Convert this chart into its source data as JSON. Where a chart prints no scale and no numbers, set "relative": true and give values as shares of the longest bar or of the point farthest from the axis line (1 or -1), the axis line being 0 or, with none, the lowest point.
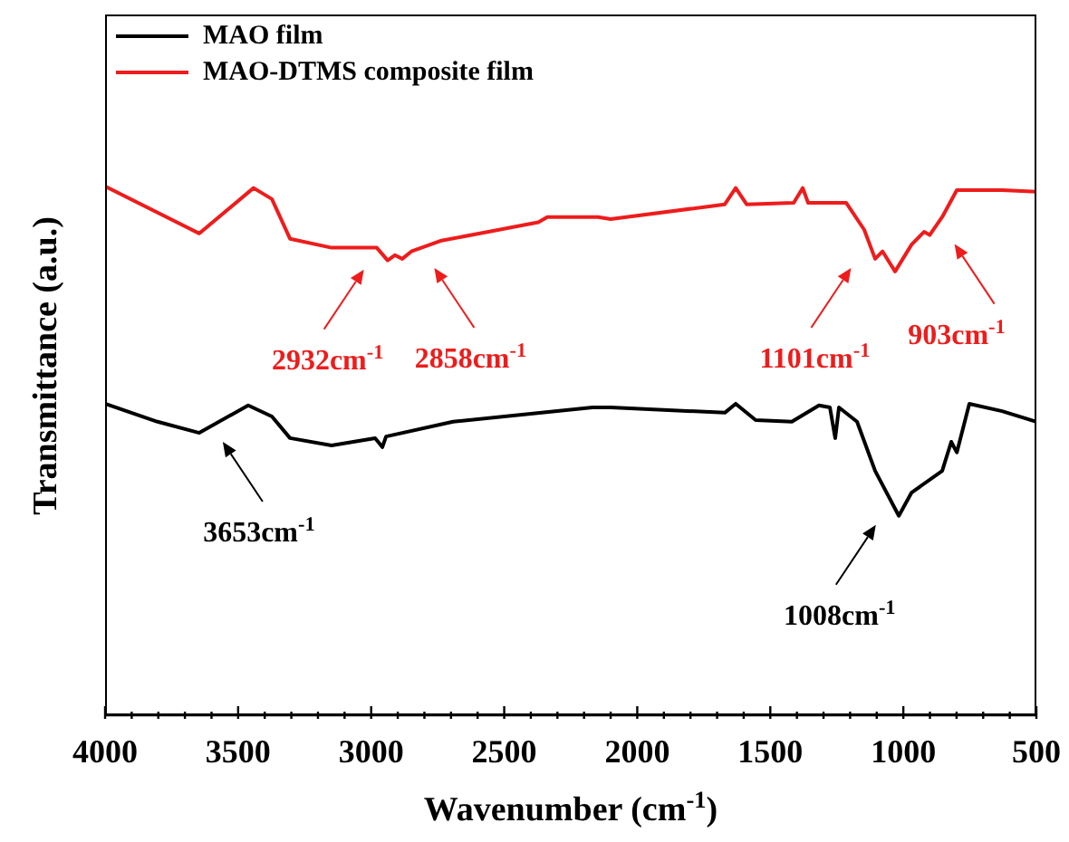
{
  "chart_data": {
    "type": "line",
    "relative": true,
    "xlabel": "Wavenumber (cm$^{-1}$)",
    "ylabel": "Transmittance (a.u.)",
    "xlim": [
      4000,
      500
    ],
    "xticks": [
      4000,
      {
        "value": 3900,
        "label": null
      },
      {
        "value": 3800,
        "label": null
      },
      {
        "value": 3700,
        "label": null
      },
      {
        "value": 3600,
        "label": null
      },
      3500,
      {
        "value": 3400,
        "label": null
      },
      {
        "value": 3300,
        "label": null
      },
      {
        "value": 3200,
        "label": null
      },
      {
        "value": 3100,
        "label": null
      },
      3000,
      {
        "value": 2900,
        "label": null
      },
      {
        "value": 2800,
        "label": null
      },
      {
        "value": 2700,
        "label": null
      },
      {
        "value": 2600,
        "label": null
      },
      2500,
      {
        "value": 2400,
        "label": null
      },
      {
        "value": 2300,
        "label": null
      },
      {
        "value": 2200,
        "label": null
      },
      {
        "value": 2100,
        "label": null
      },
      2000,
      {
        "value": 1900,
        "label": null
      },
      {
        "value": 1800,
        "label": null
      },
      {
        "value": 1700,
        "label": null
      },
      {
        "value": 1600,
        "label": null
      },
      1500,
      {
        "value": 1400,
        "label": null
      },
      {
        "value": 1300,
        "label": null
      },
      {
        "value": 1200,
        "label": null
      },
      {
        "value": 1100,
        "label": null
      },
      1000,
      {
        "value": 900,
        "label": null
      },
      {
        "value": 800,
        "label": null
      },
      {
        "value": 700,
        "label": null
      },
      {
        "value": 600,
        "label": null
      },
      500
    ],
    "legend": "top left",
    "marker": "none",
    "line_style": "solid",
    "series": [
      {
        "name": "MAO film",
        "color": "#000000",
        "x": [
          4000,
          3803,
          3646,
          3462,
          3373,
          3305,
          3149,
          2985,
          2958,
          2944,
          2692,
          2168,
          2100,
          1671,
          1630,
          1555,
          1419,
          1317,
          1276,
          1256,
          1242,
          1174,
          1106,
          1017,
          969,
          854,
          820,
          799,
          752,
          629,
          500
        ],
        "values": [
          0.589,
          0.555,
          0.534,
          0.586,
          0.565,
          0.524,
          0.51,
          0.524,
          0.507,
          0.527,
          0.555,
          0.582,
          0.582,
          0.572,
          0.589,
          0.558,
          0.555,
          0.586,
          0.582,
          0.524,
          0.582,
          0.555,
          0.462,
          0.377,
          0.421,
          0.462,
          0.517,
          0.497,
          0.589,
          0.575,
          0.555
        ]
      },
      {
        "name": "MAO-DTMS composite film",
        "color": "#ee1c1c",
        "x": [
          4000,
          3646,
          3442,
          3373,
          3305,
          3149,
          2979,
          2938,
          2911,
          2883,
          2849,
          2740,
          2372,
          2338,
          2148,
          2100,
          1671,
          1630,
          1589,
          1412,
          1378,
          1358,
          1215,
          1147,
          1106,
          1078,
          1031,
          969,
          922,
          901,
          854,
          799,
          629,
          500
        ],
        "values": [
          1.0,
          0.911,
          0.997,
          0.976,
          0.901,
          0.884,
          0.884,
          0.86,
          0.87,
          0.863,
          0.877,
          0.897,
          0.932,
          0.942,
          0.942,
          0.938,
          0.966,
          0.997,
          0.966,
          0.969,
          0.997,
          0.969,
          0.969,
          0.918,
          0.863,
          0.877,
          0.839,
          0.89,
          0.914,
          0.908,
          0.942,
          0.993,
          0.993,
          0.99
        ]
      }
    ],
    "annotations": [
      {
        "text": "2932cm$^{-1}$",
        "x": 2932,
        "y": 0.86
      },
      {
        "text": "2858cm$^{-1}$",
        "x": 2858,
        "y": 0.863
      },
      {
        "text": "1101cm$^{-1}$",
        "x": 1101,
        "y": 0.863
      },
      {
        "text": "903cm$^{-1}$",
        "x": 903,
        "y": 0.908
      },
      {
        "text": "3653cm$^{-1}$",
        "x": 3653,
        "y": 0.534
      },
      {
        "text": "1008cm$^{-1}$",
        "x": 1008,
        "y": 0.377
      }
    ]
  }
}
